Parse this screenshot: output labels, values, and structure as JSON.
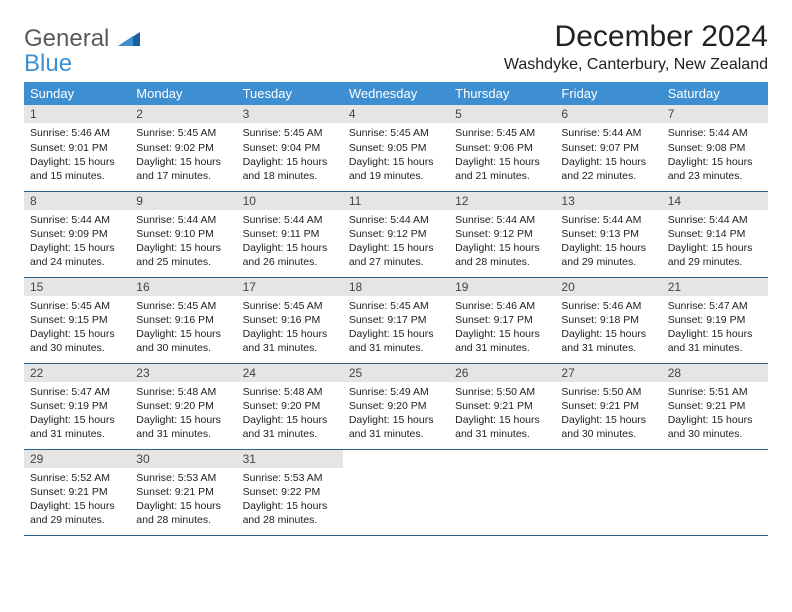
{
  "logo": {
    "line1": "General",
    "line2": "Blue"
  },
  "header": {
    "title": "December 2024",
    "location": "Washdyke, Canterbury, New Zealand"
  },
  "colors": {
    "header_bg": "#3d8fd1",
    "header_fg": "#ffffff",
    "daynum_bg": "#e5e5e5",
    "row_border": "#2b5f86",
    "logo_gray": "#5a5a5a",
    "logo_blue": "#3d8fd1"
  },
  "daysOfWeek": [
    "Sunday",
    "Monday",
    "Tuesday",
    "Wednesday",
    "Thursday",
    "Friday",
    "Saturday"
  ],
  "weeks": [
    [
      {
        "n": "1",
        "sr": "5:46 AM",
        "ss": "9:01 PM",
        "dl": "15 hours and 15 minutes."
      },
      {
        "n": "2",
        "sr": "5:45 AM",
        "ss": "9:02 PM",
        "dl": "15 hours and 17 minutes."
      },
      {
        "n": "3",
        "sr": "5:45 AM",
        "ss": "9:04 PM",
        "dl": "15 hours and 18 minutes."
      },
      {
        "n": "4",
        "sr": "5:45 AM",
        "ss": "9:05 PM",
        "dl": "15 hours and 19 minutes."
      },
      {
        "n": "5",
        "sr": "5:45 AM",
        "ss": "9:06 PM",
        "dl": "15 hours and 21 minutes."
      },
      {
        "n": "6",
        "sr": "5:44 AM",
        "ss": "9:07 PM",
        "dl": "15 hours and 22 minutes."
      },
      {
        "n": "7",
        "sr": "5:44 AM",
        "ss": "9:08 PM",
        "dl": "15 hours and 23 minutes."
      }
    ],
    [
      {
        "n": "8",
        "sr": "5:44 AM",
        "ss": "9:09 PM",
        "dl": "15 hours and 24 minutes."
      },
      {
        "n": "9",
        "sr": "5:44 AM",
        "ss": "9:10 PM",
        "dl": "15 hours and 25 minutes."
      },
      {
        "n": "10",
        "sr": "5:44 AM",
        "ss": "9:11 PM",
        "dl": "15 hours and 26 minutes."
      },
      {
        "n": "11",
        "sr": "5:44 AM",
        "ss": "9:12 PM",
        "dl": "15 hours and 27 minutes."
      },
      {
        "n": "12",
        "sr": "5:44 AM",
        "ss": "9:12 PM",
        "dl": "15 hours and 28 minutes."
      },
      {
        "n": "13",
        "sr": "5:44 AM",
        "ss": "9:13 PM",
        "dl": "15 hours and 29 minutes."
      },
      {
        "n": "14",
        "sr": "5:44 AM",
        "ss": "9:14 PM",
        "dl": "15 hours and 29 minutes."
      }
    ],
    [
      {
        "n": "15",
        "sr": "5:45 AM",
        "ss": "9:15 PM",
        "dl": "15 hours and 30 minutes."
      },
      {
        "n": "16",
        "sr": "5:45 AM",
        "ss": "9:16 PM",
        "dl": "15 hours and 30 minutes."
      },
      {
        "n": "17",
        "sr": "5:45 AM",
        "ss": "9:16 PM",
        "dl": "15 hours and 31 minutes."
      },
      {
        "n": "18",
        "sr": "5:45 AM",
        "ss": "9:17 PM",
        "dl": "15 hours and 31 minutes."
      },
      {
        "n": "19",
        "sr": "5:46 AM",
        "ss": "9:17 PM",
        "dl": "15 hours and 31 minutes."
      },
      {
        "n": "20",
        "sr": "5:46 AM",
        "ss": "9:18 PM",
        "dl": "15 hours and 31 minutes."
      },
      {
        "n": "21",
        "sr": "5:47 AM",
        "ss": "9:19 PM",
        "dl": "15 hours and 31 minutes."
      }
    ],
    [
      {
        "n": "22",
        "sr": "5:47 AM",
        "ss": "9:19 PM",
        "dl": "15 hours and 31 minutes."
      },
      {
        "n": "23",
        "sr": "5:48 AM",
        "ss": "9:20 PM",
        "dl": "15 hours and 31 minutes."
      },
      {
        "n": "24",
        "sr": "5:48 AM",
        "ss": "9:20 PM",
        "dl": "15 hours and 31 minutes."
      },
      {
        "n": "25",
        "sr": "5:49 AM",
        "ss": "9:20 PM",
        "dl": "15 hours and 31 minutes."
      },
      {
        "n": "26",
        "sr": "5:50 AM",
        "ss": "9:21 PM",
        "dl": "15 hours and 31 minutes."
      },
      {
        "n": "27",
        "sr": "5:50 AM",
        "ss": "9:21 PM",
        "dl": "15 hours and 30 minutes."
      },
      {
        "n": "28",
        "sr": "5:51 AM",
        "ss": "9:21 PM",
        "dl": "15 hours and 30 minutes."
      }
    ],
    [
      {
        "n": "29",
        "sr": "5:52 AM",
        "ss": "9:21 PM",
        "dl": "15 hours and 29 minutes."
      },
      {
        "n": "30",
        "sr": "5:53 AM",
        "ss": "9:21 PM",
        "dl": "15 hours and 28 minutes."
      },
      {
        "n": "31",
        "sr": "5:53 AM",
        "ss": "9:22 PM",
        "dl": "15 hours and 28 minutes."
      },
      null,
      null,
      null,
      null
    ]
  ],
  "labels": {
    "sunrise": "Sunrise:",
    "sunset": "Sunset:",
    "daylight": "Daylight:"
  }
}
